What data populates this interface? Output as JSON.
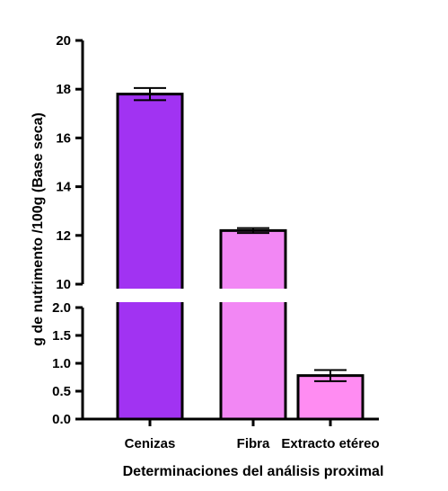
{
  "chart_data": {
    "type": "bar",
    "title": "",
    "xlabel": "Determinaciones del análisis proximal",
    "ylabel": "g de nutrimento /100g (Base seca)",
    "categories": [
      "Cenizas",
      "Fibra",
      "Extracto etéreo"
    ],
    "series": [
      {
        "values": [
          17.8,
          12.2,
          0.78
        ],
        "error": [
          0.25,
          0.1,
          0.1
        ],
        "colors": [
          "#a133f2",
          "#f287f4",
          "#ff8cf2"
        ]
      }
    ],
    "y_axis_break": {
      "lower": {
        "ylim": [
          0,
          2.0
        ],
        "ticks": [
          "0.0",
          "0.5",
          "1.0",
          "1.5",
          "2.0"
        ]
      },
      "upper": {
        "ylim": [
          10,
          20
        ],
        "ticks": [
          "10",
          "12",
          "14",
          "16",
          "18",
          "20"
        ]
      }
    },
    "grid": false,
    "legend": "none"
  }
}
